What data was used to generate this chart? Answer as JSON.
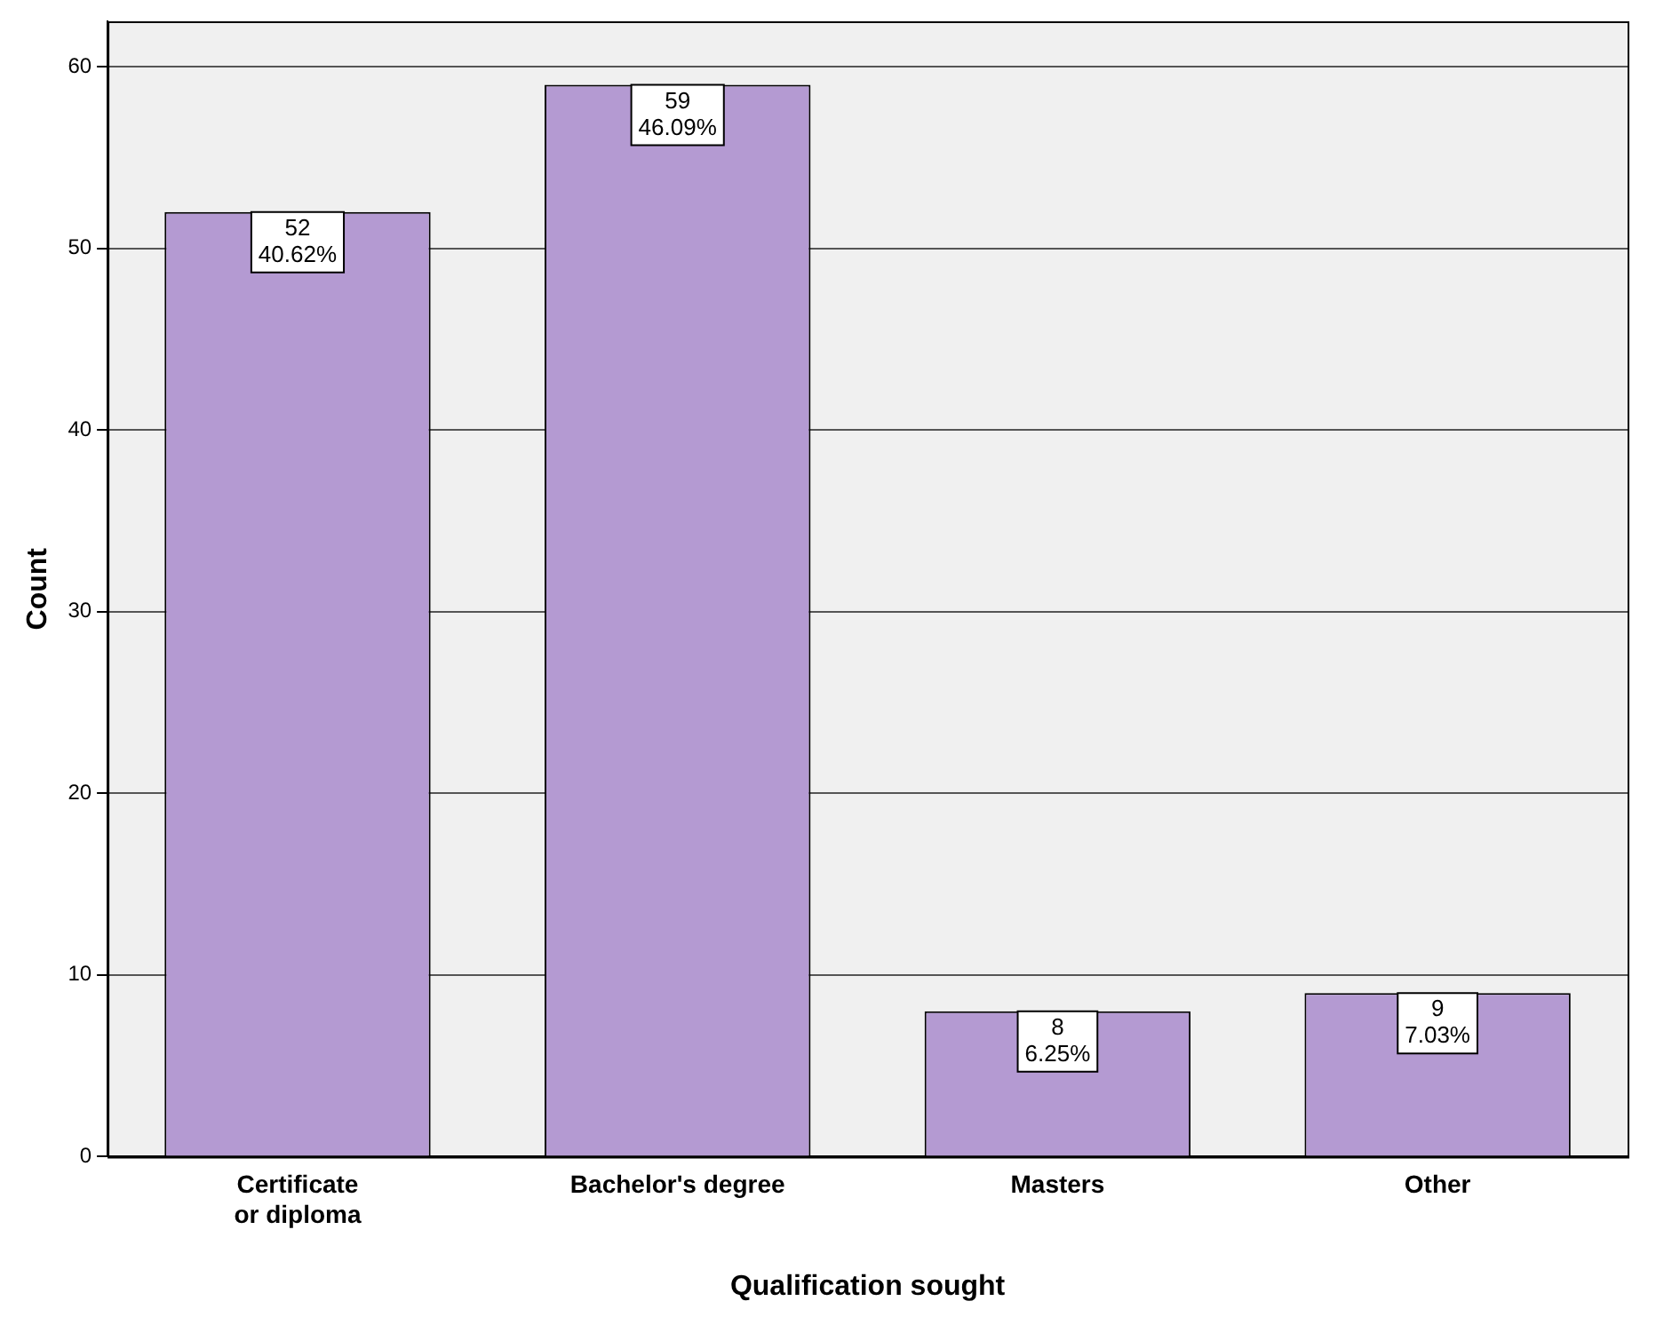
{
  "chart_data": {
    "type": "bar",
    "xlabel": "Qualification sought",
    "ylabel": "Count",
    "categories": [
      "Certificate or diploma",
      "Bachelor's degree",
      "Masters",
      "Other"
    ],
    "values": [
      52,
      59,
      8,
      9
    ],
    "value_labels": [
      "52\n40.62%",
      "59\n46.09%",
      "8\n6.25%",
      "9\n7.03%"
    ],
    "color": "#b49ad2",
    "ylim": [
      0,
      62.5
    ],
    "yticks": [
      0,
      10,
      20,
      30,
      40,
      50,
      60
    ],
    "grid": "y",
    "legend": false
  }
}
